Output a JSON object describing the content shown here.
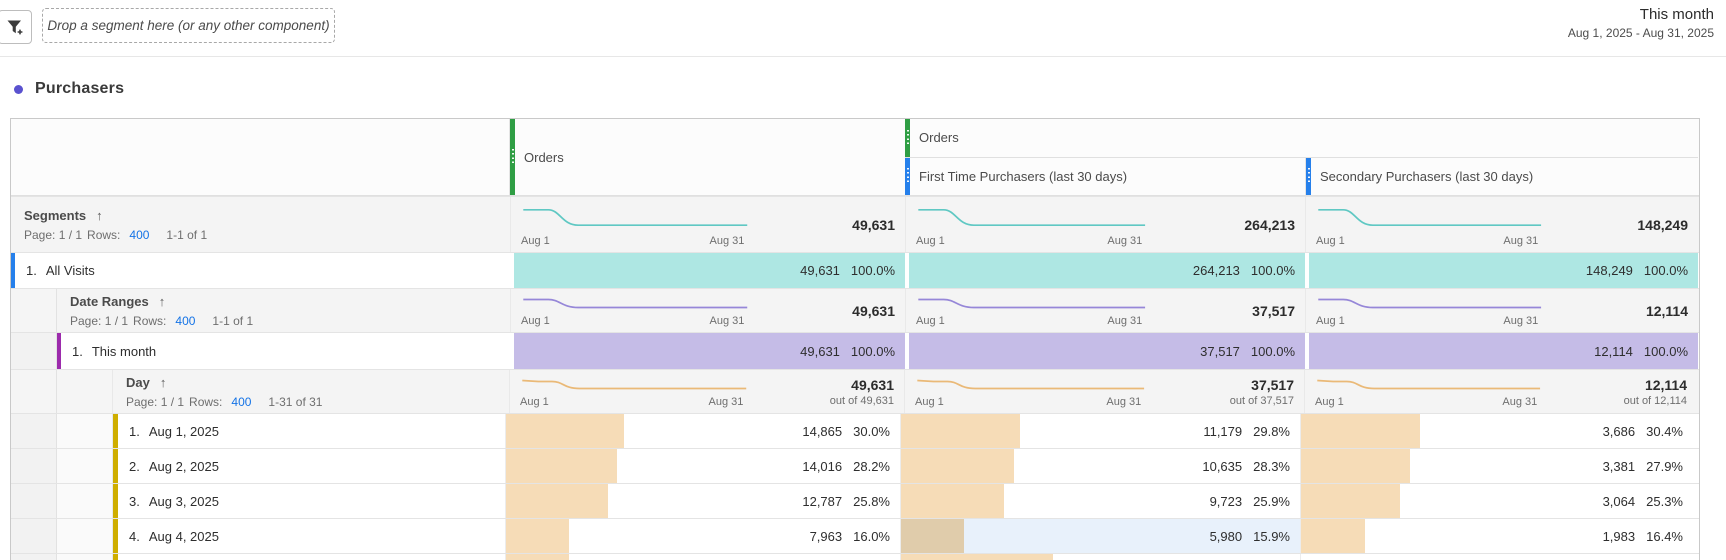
{
  "topbar": {
    "dropzone_text": "Drop a segment here (or any other component)",
    "date_range": {
      "title": "This month",
      "subtitle": "Aug 1, 2025 - Aug 31, 2025"
    }
  },
  "panel": {
    "title": "Purchasers"
  },
  "colors": {
    "accent_purple_dot": "#5a52cf",
    "metric_column_green": "#2f9e44",
    "metric_column_blue": "#2680eb",
    "segment_row_teal": "#aee7e3",
    "daterange_row_purple": "#c5bce7",
    "day_bar_orange": "#f6dcb7",
    "segment_accent_blue": "#2680eb",
    "daterange_accent_magenta": "#9c2bac",
    "day_accent_yellow": "#cfae00",
    "link_blue": "#1473e6",
    "selected_cell_blue": "#e8f1fb"
  },
  "table": {
    "header": {
      "col1": "Orders",
      "group_parent": "Orders",
      "col2": "First Time Purchasers (last 30 days)",
      "col3": "Secondary Purchasers (last 30 days)"
    },
    "spark_axis": {
      "start": "Aug 1",
      "end": "Aug 31"
    },
    "segments": {
      "title": "Segments",
      "sort_arrow": "↑",
      "pager": {
        "page": "Page: 1 / 1",
        "rows_label": "Rows:",
        "rows_value": "400",
        "range": "1-1 of 1"
      },
      "totals": [
        "49,631",
        "264,213",
        "148,249"
      ]
    },
    "all_visits": {
      "index": "1.",
      "label": "All Visits",
      "cells": [
        {
          "value": "49,631",
          "pct": "100.0%"
        },
        {
          "value": "264,213",
          "pct": "100.0%"
        },
        {
          "value": "148,249",
          "pct": "100.0%"
        }
      ]
    },
    "date_ranges": {
      "title": "Date Ranges",
      "sort_arrow": "↑",
      "pager": {
        "page": "Page: 1 / 1",
        "rows_label": "Rows:",
        "rows_value": "400",
        "range": "1-1 of 1"
      },
      "totals": [
        "49,631",
        "37,517",
        "12,114"
      ]
    },
    "this_month": {
      "index": "1.",
      "label": "This month",
      "cells": [
        {
          "value": "49,631",
          "pct": "100.0%"
        },
        {
          "value": "37,517",
          "pct": "100.0%"
        },
        {
          "value": "12,114",
          "pct": "100.0%"
        }
      ]
    },
    "day": {
      "title": "Day",
      "sort_arrow": "↑",
      "pager": {
        "page": "Page: 1 / 1",
        "rows_label": "Rows:",
        "rows_value": "400",
        "range": "1-31 of 31"
      },
      "totals": [
        {
          "value": "49,631",
          "out_of": "out of 49,631"
        },
        {
          "value": "37,517",
          "out_of": "out of 37,517"
        },
        {
          "value": "12,114",
          "out_of": "out of 12,114"
        }
      ]
    },
    "day_rows": [
      {
        "index": "1.",
        "label": "Aug 1, 2025",
        "cells": [
          {
            "value": "14,865",
            "pct": "30.0%",
            "bar": 30.0,
            "selected": false
          },
          {
            "value": "11,179",
            "pct": "29.8%",
            "bar": 29.8,
            "selected": false
          },
          {
            "value": "3,686",
            "pct": "30.4%",
            "bar": 30.4,
            "selected": false
          }
        ]
      },
      {
        "index": "2.",
        "label": "Aug 2, 2025",
        "cells": [
          {
            "value": "14,016",
            "pct": "28.2%",
            "bar": 28.2,
            "selected": false
          },
          {
            "value": "10,635",
            "pct": "28.3%",
            "bar": 28.3,
            "selected": false
          },
          {
            "value": "3,381",
            "pct": "27.9%",
            "bar": 27.9,
            "selected": false
          }
        ]
      },
      {
        "index": "3.",
        "label": "Aug 3, 2025",
        "cells": [
          {
            "value": "12,787",
            "pct": "25.8%",
            "bar": 25.8,
            "selected": false
          },
          {
            "value": "9,723",
            "pct": "25.9%",
            "bar": 25.9,
            "selected": false
          },
          {
            "value": "3,064",
            "pct": "25.3%",
            "bar": 25.3,
            "selected": false
          }
        ]
      },
      {
        "index": "4.",
        "label": "Aug 4, 2025",
        "cells": [
          {
            "value": "7,963",
            "pct": "16.0%",
            "bar": 16.0,
            "selected": false
          },
          {
            "value": "5,980",
            "pct": "15.9%",
            "bar": 15.9,
            "selected": true
          },
          {
            "value": "1,983",
            "pct": "16.4%",
            "bar": 16.4,
            "selected": false
          }
        ]
      }
    ],
    "partial_row_bars": [
      16,
      38,
      0
    ]
  }
}
